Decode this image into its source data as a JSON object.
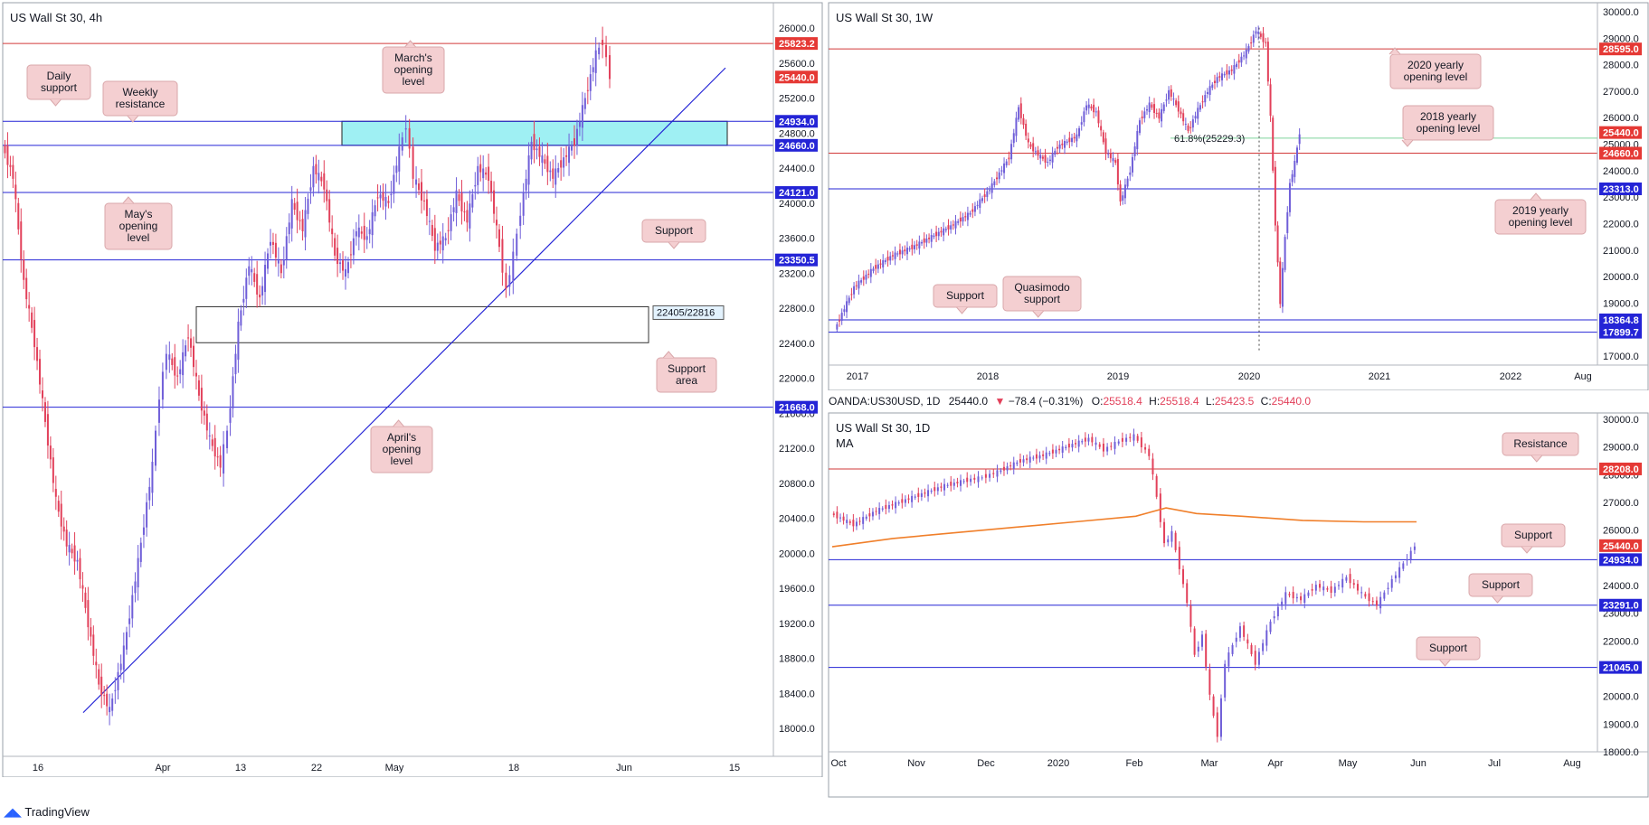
{
  "header_bar": {
    "symbol": "OANDA:US30USD, 1D",
    "price": "25440.0",
    "change": "−78.4 (−0.31%)",
    "o_label": "O:",
    "o": "25518.4",
    "h_label": "H:",
    "h": "25518.4",
    "l_label": "L:",
    "l": "25423.5",
    "c_label": "C:",
    "c": "25440.0"
  },
  "brand": {
    "name": "TradingView"
  },
  "colors": {
    "up": "#6f5ed8",
    "down": "#e2405a",
    "support_line": "#2424d6",
    "resistance_line": "#d23a3a",
    "zone_fill": "#9ff0f3",
    "ma": "#f07f2a",
    "fib": "#7fd39b",
    "callout_bg": "#f4cfd1"
  },
  "chart_data": [
    {
      "id": "h4",
      "type": "line",
      "title": "US Wall St 30, 4h",
      "ylim": [
        17700,
        26300
      ],
      "y_ticks": [
        "18000.0",
        "18400.0",
        "18800.0",
        "19200.0",
        "19600.0",
        "20000.0",
        "20400.0",
        "20800.0",
        "21200.0",
        "21600.0",
        "22000.0",
        "22400.0",
        "22800.0",
        "23200.0",
        "23600.0",
        "24000.0",
        "24400.0",
        "24800.0",
        "25200.0",
        "25600.0",
        "26000.0"
      ],
      "x_ticks": [
        "16",
        "Apr",
        "13",
        "22",
        "May",
        "18",
        "Jun",
        "15"
      ],
      "price_path": [
        [
          0,
          24660
        ],
        [
          3,
          24300
        ],
        [
          6,
          23100
        ],
        [
          9,
          22400
        ],
        [
          12,
          21500
        ],
        [
          15,
          20600
        ],
        [
          18,
          20100
        ],
        [
          21,
          19900
        ],
        [
          24,
          19200
        ],
        [
          27,
          18500
        ],
        [
          30,
          18200
        ],
        [
          34,
          18900
        ],
        [
          38,
          19900
        ],
        [
          42,
          21000
        ],
        [
          44,
          21800
        ],
        [
          46,
          22300
        ],
        [
          49,
          22000
        ],
        [
          52,
          22500
        ],
        [
          55,
          21800
        ],
        [
          58,
          21300
        ],
        [
          61,
          21000
        ],
        [
          63,
          21400
        ],
        [
          66,
          22600
        ],
        [
          69,
          23300
        ],
        [
          72,
          22900
        ],
        [
          75,
          23600
        ],
        [
          78,
          23200
        ],
        [
          81,
          24000
        ],
        [
          84,
          23700
        ],
        [
          87,
          24400
        ],
        [
          90,
          24200
        ],
        [
          93,
          23400
        ],
        [
          96,
          23200
        ],
        [
          99,
          23700
        ],
        [
          102,
          23600
        ],
        [
          105,
          24100
        ],
        [
          108,
          24000
        ],
        [
          111,
          24600
        ],
        [
          113,
          24900
        ],
        [
          115,
          24300
        ],
        [
          118,
          24000
        ],
        [
          121,
          23500
        ],
        [
          124,
          23600
        ],
        [
          127,
          24100
        ],
        [
          130,
          23800
        ],
        [
          133,
          24400
        ],
        [
          136,
          24300
        ],
        [
          139,
          23500
        ],
        [
          141,
          23000
        ],
        [
          143,
          23400
        ],
        [
          145,
          23900
        ],
        [
          148,
          24700
        ],
        [
          151,
          24500
        ],
        [
          154,
          24300
        ],
        [
          157,
          24500
        ],
        [
          160,
          24700
        ],
        [
          163,
          25200
        ],
        [
          166,
          25700
        ],
        [
          168,
          25850
        ],
        [
          170,
          25440
        ]
      ],
      "levels": [
        {
          "value": 25823.2,
          "label": "25823.2",
          "kind": "resistance"
        },
        {
          "value": 25440.0,
          "label": "25440.0",
          "kind": "price"
        },
        {
          "value": 24934.0,
          "label": "24934.0",
          "kind": "support"
        },
        {
          "value": 24660.0,
          "label": "24660.0",
          "kind": "support"
        },
        {
          "value": 24121.0,
          "label": "24121.0",
          "kind": "support"
        },
        {
          "value": 23350.5,
          "label": "23350.5",
          "kind": "support"
        },
        {
          "value": 21668.0,
          "label": "21668.0",
          "kind": "support"
        }
      ],
      "zone": {
        "top": 24934,
        "bottom": 24660
      },
      "support_area": {
        "top": 22816,
        "bottom": 22405,
        "label": "22405/22816"
      },
      "trendline": {
        "from": [
          18200
        ],
        "to": [
          25400
        ]
      },
      "callouts": [
        {
          "lines": [
            "Daily",
            "support"
          ]
        },
        {
          "lines": [
            "Weekly",
            "resistance"
          ]
        },
        {
          "lines": [
            "March's",
            "opening",
            "level"
          ]
        },
        {
          "lines": [
            "May's",
            "opening",
            "level"
          ]
        },
        {
          "lines": [
            "Support"
          ]
        },
        {
          "lines": [
            "Support",
            "area"
          ]
        },
        {
          "lines": [
            "April's",
            "opening",
            "level"
          ]
        }
      ]
    },
    {
      "id": "w1",
      "type": "line",
      "title": "US Wall St 30, 1W",
      "ylim": [
        16500,
        30200
      ],
      "y_ticks": [
        "17000.0",
        "18000.0",
        "19000.0",
        "20000.0",
        "21000.0",
        "22000.0",
        "23000.0",
        "24000.0",
        "25000.0",
        "26000.0",
        "27000.0",
        "28000.0",
        "29000.0",
        "30000.0"
      ],
      "x_ticks": [
        "2017",
        "2018",
        "2019",
        "2020",
        "2021",
        "2022",
        "Aug"
      ],
      "price_path": [
        [
          0,
          18000
        ],
        [
          4,
          19600
        ],
        [
          8,
          20300
        ],
        [
          12,
          20800
        ],
        [
          16,
          21100
        ],
        [
          20,
          21500
        ],
        [
          24,
          21900
        ],
        [
          28,
          22400
        ],
        [
          32,
          23300
        ],
        [
          36,
          24500
        ],
        [
          38,
          26400
        ],
        [
          40,
          25000
        ],
        [
          42,
          24600
        ],
        [
          44,
          24300
        ],
        [
          46,
          24900
        ],
        [
          48,
          25100
        ],
        [
          50,
          25300
        ],
        [
          52,
          26500
        ],
        [
          54,
          26200
        ],
        [
          56,
          24700
        ],
        [
          58,
          24300
        ],
        [
          59,
          22800
        ],
        [
          61,
          24000
        ],
        [
          63,
          25900
        ],
        [
          65,
          26500
        ],
        [
          67,
          26000
        ],
        [
          69,
          27000
        ],
        [
          71,
          26300
        ],
        [
          73,
          25500
        ],
        [
          75,
          26300
        ],
        [
          77,
          27000
        ],
        [
          79,
          27500
        ],
        [
          82,
          27800
        ],
        [
          85,
          28500
        ],
        [
          87,
          29300
        ],
        [
          89,
          28800
        ],
        [
          90,
          26000
        ],
        [
          91,
          22000
        ],
        [
          92,
          19000
        ],
        [
          93,
          21500
        ],
        [
          94,
          23500
        ],
        [
          95,
          24300
        ],
        [
          96,
          25440
        ]
      ],
      "levels": [
        {
          "value": 28595.0,
          "label": "28595.0",
          "kind": "resistance"
        },
        {
          "value": 25440.0,
          "label": "25440.0",
          "kind": "price"
        },
        {
          "value": 24660.0,
          "label": "24660.0",
          "kind": "resistance"
        },
        {
          "value": 23313.0,
          "label": "23313.0",
          "kind": "support"
        },
        {
          "value": 18364.8,
          "label": "18364.8",
          "kind": "support"
        },
        {
          "value": 17899.7,
          "label": "17899.7",
          "kind": "support"
        }
      ],
      "fib": {
        "value": 25229.3,
        "label": "61.8%(25229.3)"
      },
      "callouts": [
        {
          "lines": [
            "2020 yearly",
            "opening level"
          ]
        },
        {
          "lines": [
            "2018 yearly",
            "opening level"
          ]
        },
        {
          "lines": [
            "2019 yearly",
            "opening level"
          ]
        },
        {
          "lines": [
            "Support"
          ]
        },
        {
          "lines": [
            "Quasimodo",
            "support"
          ]
        }
      ]
    },
    {
      "id": "d1",
      "type": "line",
      "title": "US Wall St 30, 1D",
      "subtitle": "MA",
      "ylim": [
        17600,
        30300
      ],
      "y_ticks": [
        "18000.0",
        "19000.0",
        "20000.0",
        "21000.0",
        "22000.0",
        "23000.0",
        "24000.0",
        "25000.0",
        "26000.0",
        "27000.0",
        "28000.0",
        "29000.0",
        "30000.0"
      ],
      "x_ticks": [
        "Oct",
        "Nov",
        "Dec",
        "2020",
        "Feb",
        "Mar",
        "Apr",
        "May",
        "Jun",
        "Jul",
        "Aug"
      ],
      "price_path": [
        [
          0,
          26600
        ],
        [
          3,
          26200
        ],
        [
          6,
          26700
        ],
        [
          9,
          27000
        ],
        [
          12,
          27300
        ],
        [
          15,
          27600
        ],
        [
          18,
          27800
        ],
        [
          20,
          27900
        ],
        [
          22,
          28100
        ],
        [
          25,
          28500
        ],
        [
          28,
          28700
        ],
        [
          31,
          29000
        ],
        [
          34,
          29300
        ],
        [
          36,
          28900
        ],
        [
          38,
          29200
        ],
        [
          40,
          29400
        ],
        [
          42,
          28700
        ],
        [
          43,
          27200
        ],
        [
          44,
          25500
        ],
        [
          45,
          25900
        ],
        [
          47,
          23400
        ],
        [
          48,
          21500
        ],
        [
          49,
          22200
        ],
        [
          50,
          20000
        ],
        [
          51,
          18600
        ],
        [
          52,
          21200
        ],
        [
          54,
          22500
        ],
        [
          56,
          21200
        ],
        [
          58,
          22700
        ],
        [
          60,
          23700
        ],
        [
          62,
          23500
        ],
        [
          64,
          24000
        ],
        [
          66,
          23800
        ],
        [
          68,
          24300
        ],
        [
          70,
          23700
        ],
        [
          72,
          23300
        ],
        [
          74,
          24200
        ],
        [
          76,
          25000
        ],
        [
          77,
          25440
        ]
      ],
      "ma_path": [
        [
          0,
          25400
        ],
        [
          8,
          25700
        ],
        [
          16,
          25900
        ],
        [
          24,
          26100
        ],
        [
          32,
          26300
        ],
        [
          40,
          26500
        ],
        [
          44,
          26800
        ],
        [
          48,
          26600
        ],
        [
          54,
          26500
        ],
        [
          62,
          26350
        ],
        [
          70,
          26300
        ],
        [
          77,
          26300
        ]
      ],
      "levels": [
        {
          "value": 28208.0,
          "label": "28208.0",
          "kind": "resistance"
        },
        {
          "value": 25440.0,
          "label": "25440.0",
          "kind": "price"
        },
        {
          "value": 24934.0,
          "label": "24934.0",
          "kind": "support"
        },
        {
          "value": 23291.0,
          "label": "23291.0",
          "kind": "support"
        },
        {
          "value": 21045.0,
          "label": "21045.0",
          "kind": "support"
        }
      ],
      "callouts": [
        {
          "lines": [
            "Resistance"
          ]
        },
        {
          "lines": [
            "Support"
          ]
        },
        {
          "lines": [
            "Support"
          ]
        },
        {
          "lines": [
            "Support"
          ]
        }
      ]
    }
  ]
}
